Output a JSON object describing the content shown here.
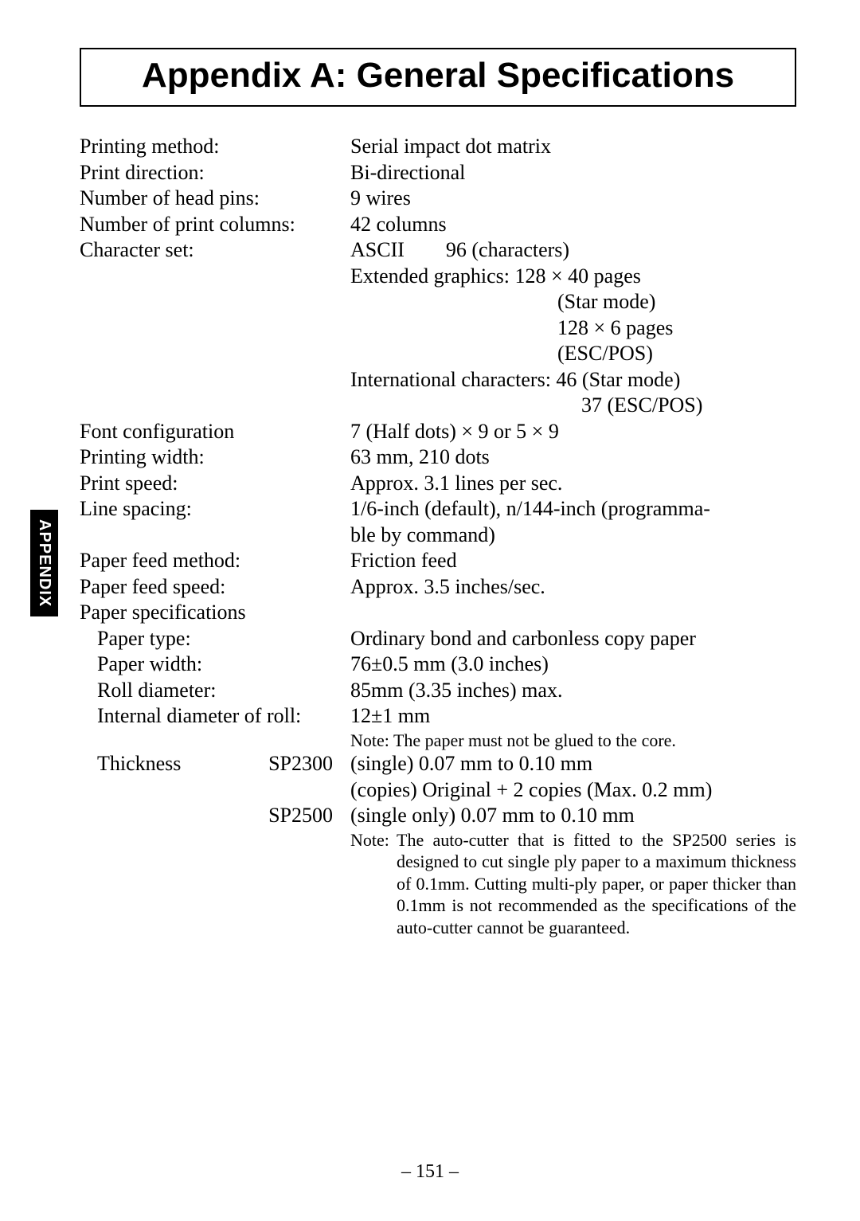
{
  "sideTab": "APPENDIX",
  "title": "Appendix A: General Specifications",
  "specs": {
    "printingMethod": {
      "label": "Printing method:",
      "value": "Serial impact dot matrix"
    },
    "printDirection": {
      "label": "Print direction:",
      "value": "Bi-directional"
    },
    "headPins": {
      "label": "Number of head pins:",
      "value": "9 wires"
    },
    "printColumns": {
      "label": "Number of print columns:",
      "value": "42 columns"
    },
    "charset": {
      "label": "Character set:",
      "ascii": "ASCII  96 (characters)",
      "ext1": "Extended graphics: 128 × 40 pages",
      "ext1b": "(Star mode)",
      "ext2": "128 × 6 pages",
      "ext2b": "(ESC/POS)",
      "intl_label": "International characters:",
      "intl1": "46 (Star mode)",
      "intl2": "37 (ESC/POS)"
    },
    "fontConfig": {
      "label": "Font configuration",
      "value": "7 (Half dots) × 9 or 5 × 9"
    },
    "printingWidth": {
      "label": "Printing width:",
      "value": "63 mm, 210 dots"
    },
    "printSpeed": {
      "label": "Print speed:",
      "value": "Approx. 3.1 lines per sec."
    },
    "lineSpacing": {
      "label": "Line spacing:",
      "value1": "1/6-inch (default), n/144-inch (programma-",
      "value2": "ble by command)"
    },
    "feedMethod": {
      "label": "Paper feed method:",
      "value": "Friction feed"
    },
    "feedSpeed": {
      "label": "Paper feed speed:",
      "value": "Approx. 3.5 inches/sec."
    },
    "paperSpecHeader": "Paper specifications",
    "paperType": {
      "label": "Paper type:",
      "value": "Ordinary bond and carbonless copy paper"
    },
    "paperWidth": {
      "label": "Paper width:",
      "value": "76±0.5 mm (3.0 inches)"
    },
    "rollDiameter": {
      "label": "Roll diameter:",
      "value": "85mm (3.35 inches) max."
    },
    "internalDiameter": {
      "label": "Internal diameter of roll:",
      "value": "12±1 mm"
    },
    "noteCore": "Note: The paper must not be glued to the core.",
    "thickness": {
      "label": "Thickness",
      "model1": "SP2300",
      "model1_v1": "(single) 0.07 mm to 0.10 mm",
      "model1_v2": "(copies) Original + 2 copies (Max. 0.2 mm)",
      "model2": "SP2500",
      "model2_v1": "(single only) 0.07 mm to 0.10 mm"
    },
    "noteCutter": {
      "prefix": "Note:",
      "text": "The auto-cutter that is fitted to the SP2500 series is designed to cut single ply paper to a maximum thickness of 0.1mm.  Cutting multi-ply paper, or paper thicker than 0.1mm is not recommended as the specifications of the auto-cutter cannot be guaranteed."
    }
  },
  "pageNumber": "– 151 –"
}
